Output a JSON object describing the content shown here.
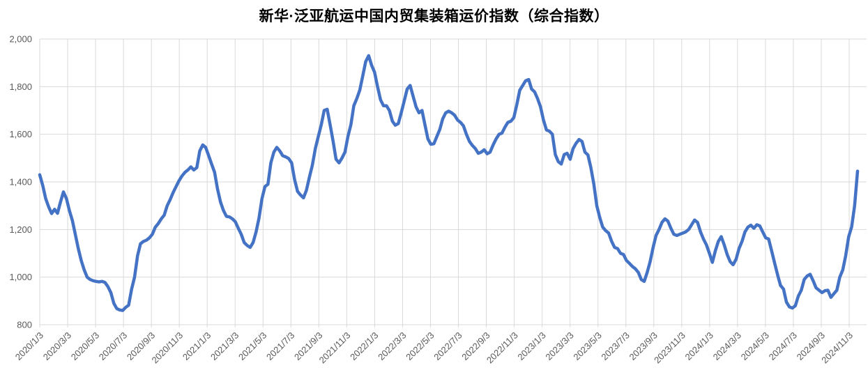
{
  "title": "新华·泛亚航运中国内贸集装箱运价指数（综合指数）",
  "chart_data": {
    "type": "line",
    "title": "新华·泛亚航运中国内贸集装箱运价指数（综合指数）",
    "series_name": "综合指数",
    "line_color": "#4472C4",
    "grid_color": "#D9D9D9",
    "axis_text_color": "#595959",
    "background_color": "#FFFFFF",
    "grid": true,
    "legend_position": "none",
    "ylim": [
      800,
      2000
    ],
    "y_ticks": [
      {
        "value": 800,
        "label": "800"
      },
      {
        "value": 1000,
        "label": "1,000"
      },
      {
        "value": 1200,
        "label": "1,200"
      },
      {
        "value": 1400,
        "label": "1,400"
      },
      {
        "value": 1600,
        "label": "1,600"
      },
      {
        "value": 1800,
        "label": "1,800"
      },
      {
        "value": 2000,
        "label": "2,000"
      }
    ],
    "x_tick_labels": [
      "2020/1/3",
      "2020/3/3",
      "2020/5/3",
      "2020/7/3",
      "2020/9/3",
      "2020/11/3",
      "2021/1/3",
      "2021/3/3",
      "2021/5/3",
      "2021/7/3",
      "2021/9/3",
      "2021/11/3",
      "2022/1/3",
      "2022/3/3",
      "2022/5/3",
      "2022/7/3",
      "2022/9/3",
      "2022/11/3",
      "2023/1/3",
      "2023/3/3",
      "2023/5/3",
      "2023/7/3",
      "2023/9/3",
      "2023/11/3",
      "2024/1/3",
      "2024/3/3",
      "2024/5/3",
      "2024/7/3",
      "2024/9/3",
      "2024/11/3"
    ],
    "x_start": "2020/1/3",
    "x_end": "2024/11 (late)",
    "sampling": "approx. weekly, values estimated from plot",
    "values": [
      1430,
      1385,
      1330,
      1295,
      1267,
      1285,
      1268,
      1316,
      1358,
      1330,
      1280,
      1238,
      1180,
      1120,
      1070,
      1030,
      1000,
      990,
      985,
      982,
      980,
      982,
      978,
      960,
      935,
      890,
      868,
      862,
      860,
      873,
      882,
      950,
      1000,
      1090,
      1140,
      1150,
      1155,
      1165,
      1180,
      1210,
      1225,
      1245,
      1260,
      1300,
      1325,
      1355,
      1380,
      1405,
      1425,
      1440,
      1450,
      1463,
      1450,
      1460,
      1530,
      1555,
      1545,
      1510,
      1475,
      1440,
      1370,
      1315,
      1280,
      1255,
      1253,
      1245,
      1233,
      1205,
      1180,
      1145,
      1133,
      1125,
      1145,
      1190,
      1248,
      1330,
      1380,
      1390,
      1480,
      1525,
      1545,
      1530,
      1510,
      1505,
      1498,
      1480,
      1410,
      1360,
      1345,
      1333,
      1365,
      1420,
      1470,
      1540,
      1590,
      1640,
      1700,
      1705,
      1640,
      1570,
      1495,
      1480,
      1500,
      1525,
      1590,
      1640,
      1720,
      1750,
      1785,
      1845,
      1905,
      1930,
      1890,
      1860,
      1800,
      1745,
      1720,
      1720,
      1700,
      1655,
      1638,
      1645,
      1690,
      1740,
      1790,
      1805,
      1760,
      1715,
      1690,
      1700,
      1640,
      1580,
      1558,
      1560,
      1590,
      1620,
      1665,
      1690,
      1697,
      1690,
      1680,
      1660,
      1650,
      1635,
      1600,
      1570,
      1553,
      1540,
      1520,
      1525,
      1535,
      1518,
      1525,
      1555,
      1580,
      1600,
      1605,
      1630,
      1650,
      1655,
      1670,
      1725,
      1785,
      1805,
      1825,
      1830,
      1790,
      1778,
      1750,
      1715,
      1660,
      1618,
      1613,
      1600,
      1515,
      1485,
      1475,
      1515,
      1520,
      1495,
      1540,
      1562,
      1578,
      1570,
      1525,
      1513,
      1460,
      1390,
      1300,
      1250,
      1210,
      1195,
      1185,
      1150,
      1125,
      1120,
      1100,
      1095,
      1070,
      1058,
      1045,
      1035,
      1020,
      990,
      982,
      1020,
      1065,
      1125,
      1175,
      1200,
      1230,
      1245,
      1235,
      1205,
      1180,
      1175,
      1180,
      1185,
      1190,
      1200,
      1220,
      1240,
      1230,
      1190,
      1160,
      1135,
      1100,
      1062,
      1110,
      1150,
      1170,
      1135,
      1095,
      1065,
      1052,
      1075,
      1120,
      1150,
      1190,
      1210,
      1218,
      1205,
      1220,
      1215,
      1190,
      1165,
      1160,
      1110,
      1060,
      1010,
      965,
      950,
      895,
      875,
      870,
      880,
      920,
      945,
      990,
      1005,
      1012,
      985,
      955,
      945,
      935,
      943,
      945,
      915,
      930,
      945,
      1000,
      1030,
      1090,
      1170,
      1210,
      1300,
      1445
    ]
  }
}
